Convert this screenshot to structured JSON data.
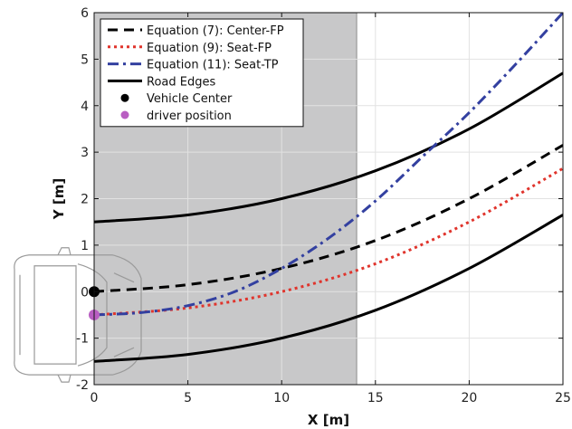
{
  "chart_data": {
    "type": "line",
    "title": "",
    "xlabel": "X [m]",
    "ylabel": "Y [m]",
    "xlim": [
      0,
      25
    ],
    "ylim": [
      -2,
      6
    ],
    "xticks": [
      0,
      5,
      10,
      15,
      20,
      25
    ],
    "yticks": [
      -2,
      -1,
      0,
      1,
      2,
      3,
      4,
      5,
      6
    ],
    "grid": true,
    "legend_position": "top-left",
    "shaded_region": {
      "x_start": 0,
      "x_end": 14,
      "color": "#c8c8c9"
    },
    "series": [
      {
        "name": "Equation (7): Center-FP",
        "style": "dashed",
        "color": "#000000",
        "x": [
          0,
          5,
          10,
          15,
          20,
          25
        ],
        "y": [
          0.0,
          0.15,
          0.5,
          1.1,
          2.0,
          3.15
        ]
      },
      {
        "name": "Equation (9): Seat-FP",
        "style": "dotted",
        "color": "#e0342c",
        "x": [
          0,
          5,
          10,
          15,
          20,
          25
        ],
        "y": [
          -0.5,
          -0.35,
          0.0,
          0.6,
          1.5,
          2.65
        ]
      },
      {
        "name": "Equation (11): Seat-TP",
        "style": "dashdot",
        "color": "#3340a0",
        "x": [
          0,
          2.5,
          5,
          7.5,
          10,
          12.5,
          15,
          17.5,
          20,
          22.5,
          25
        ],
        "y": [
          -0.5,
          -0.45,
          -0.3,
          0.0,
          0.5,
          1.15,
          1.95,
          2.9,
          3.85,
          4.9,
          6.0
        ]
      },
      {
        "name": "Road Edges",
        "style": "solid",
        "color": "#000000",
        "x": [
          0,
          5,
          10,
          15,
          20,
          25
        ],
        "y": [
          1.5,
          1.65,
          2.0,
          2.6,
          3.5,
          4.7
        ]
      },
      {
        "name": "",
        "style": "solid",
        "color": "#000000",
        "x": [
          0,
          5,
          10,
          15,
          20,
          25
        ],
        "y": [
          -1.5,
          -1.35,
          -1.0,
          -0.4,
          0.5,
          1.65
        ]
      }
    ],
    "points": [
      {
        "name": "Vehicle Center",
        "x": 0,
        "y": 0,
        "color": "#000000"
      },
      {
        "name": "driver position",
        "x": 0,
        "y": -0.5,
        "color": "#b95ec2"
      }
    ]
  }
}
